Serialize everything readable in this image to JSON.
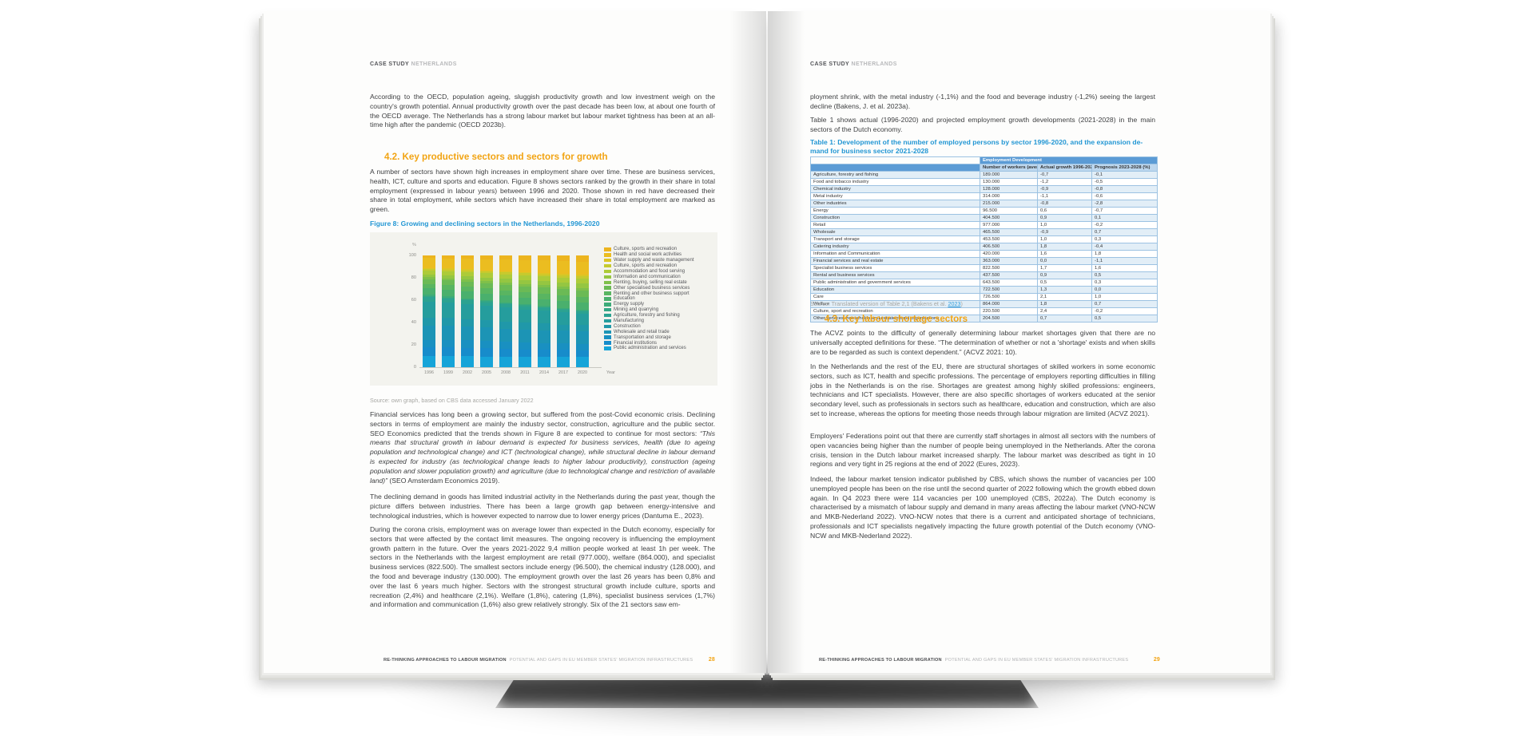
{
  "book": {
    "left_page": {
      "header": {
        "bold": "CASE STUDY",
        "light": "NETHERLANDS"
      },
      "p1": "According to the OECD, population ageing, sluggish productivity growth and low investment weigh on the country's growth potential. Annual productivity growth over the past decade has been low, at about one fourth of the OECD average. The Netherlands has a strong labour market but labour market tightness has been at an all-time high after the pandemic (OECD 2023b).",
      "section_heading": "4.2. Key productive sectors and sectors for growth",
      "p2": "A number of sectors have shown high increases in employment share over time. These are business services, health, ICT, culture and sports and education. Figure 8 shows sectors ranked by the growth in their share in total employment (expressed in labour years) between 1996 and 2020. Those shown in red have decreased their share in total employment, while sectors which have increased their share in total employment are marked as green.",
      "figure_caption": "Figure 8: Growing and declining sectors in the Netherlands, 1996-2020",
      "figure_source": "Source: own graph, based on CBS data accessed January 2022",
      "p3_lead": "Financial services has long been a growing sector, but suffered from the post-Covid economic crisis. Declining sectors in terms of employment are mainly the industry sector, construction, agriculture and the public sector. SEO Economics predicted that the trends shown in Figure 8 are expected to continue for most sectors: ",
      "p3_quote": "“This means that structural growth in labour demand is expected for business services, health (due to ageing population and technological change) and ICT (technological change), while structural decline in labour demand is expected for industry (as technological change leads to higher labour productivity), construction (ageing population and slower population growth) and agriculture (due to technological change and restriction of available land)”",
      "p3_tail": " (SEO Amsterdam Economics 2019).",
      "p4": "The declining demand in goods has limited industrial activity in the Netherlands during the past year, though the picture differs between industries. There has been a large growth gap between energy-intensive and technological industries, which is however expected to narrow due to lower energy prices (Dantuma E., 2023).",
      "p5": "During the corona crisis, employment was on average lower than expected in the Dutch economy, especially for sectors that were affected by the contact limit measures. The ongoing recovery is influencing the employment growth pattern in the future. Over the years 2021-2022 9,4 million people worked at least 1h per week. The sectors in the Netherlands with the largest employment are retail (977.000), welfare (864.000), and specialist business services (822.500). The smallest sectors include energy (96.500), the chemical industry (128.000), and the food and beverage industry (130.000). The employment growth over the last 26 years has been 0,8% and over the last 6 years much higher. Sectors with the strongest structural growth include culture, sports and recreation (2,4%) and healthcare (2,1%). Welfare (1,8%), catering (1,8%), specialist business services (1,7%) and information and communication (1,6%) also grew relatively strongly. Six of the 21 sectors saw em-",
      "footer": {
        "bold": "RE-THINKING APPROACHES TO LABOUR MIGRATION",
        "light": "POTENTIAL AND GAPS IN EU MEMBER STATES' MIGRATION INFRASTRUCTURES",
        "page": "28"
      }
    },
    "right_page": {
      "header": {
        "bold": "CASE STUDY",
        "light": "NETHERLANDS"
      },
      "p1": "ployment shrink, with the metal industry (-1,1%) and the food and beverage industry (-1,2%) seeing the largest decline (Bakens, J. et al. 2023a).",
      "p2": "Table 1 shows actual (1996-2020) and projected employment growth developments (2021-2028) in the main sectors of the Dutch economy.",
      "table_caption": "Table 1: Development of the number of employed persons by sector 1996-2020, and the expansion de-mand for business sector 2021-2028",
      "table": {
        "band_header": "Employment Development",
        "columns": [
          "Number of workers (average 2021-2022)",
          "Actual growth 1996-2022 (%)",
          "Prognosis 2023-2028 (%)"
        ],
        "rows": [
          {
            "sector": "Agriculture, forestry and fishing",
            "values": [
              "189.000",
              "-0,7",
              "-0,1"
            ]
          },
          {
            "sector": "Food and tobacco industry",
            "values": [
              "130.000",
              "-1,2",
              "-0,5"
            ]
          },
          {
            "sector": "Chemical industry",
            "values": [
              "128.000",
              "-0,9",
              "-0,8"
            ]
          },
          {
            "sector": "Metal industry",
            "values": [
              "314.000",
              "-1,1",
              "-0,6"
            ]
          },
          {
            "sector": "Other industries",
            "values": [
              "215.000",
              "-0,8",
              "-2,8"
            ]
          },
          {
            "sector": "Energy",
            "values": [
              "96.500",
              "0,6",
              "-0,7"
            ]
          },
          {
            "sector": "Construction",
            "values": [
              "404.500",
              "0,9",
              "0,1"
            ]
          },
          {
            "sector": "Retail",
            "values": [
              "977.000",
              "1,0",
              "-0,2"
            ]
          },
          {
            "sector": "Wholesale",
            "values": [
              "465.500",
              "-0,9",
              "0,7"
            ]
          },
          {
            "sector": "Transport and storage",
            "values": [
              "453.500",
              "1,0",
              "0,3"
            ]
          },
          {
            "sector": "Catering industry",
            "values": [
              "406.500",
              "1,8",
              "-0,4"
            ]
          },
          {
            "sector": "Information and Communication",
            "values": [
              "420.000",
              "1,6",
              "1,8"
            ]
          },
          {
            "sector": "Financial services and real estate",
            "values": [
              "363.000",
              "0,0",
              "-1,1"
            ]
          },
          {
            "sector": "Specialist business services",
            "values": [
              "822.500",
              "1,7",
              "1,6"
            ]
          },
          {
            "sector": "Rental and business services",
            "values": [
              "437.500",
              "0,9",
              "0,5"
            ]
          },
          {
            "sector": "Public administration and government services",
            "values": [
              "643.500",
              "0,5",
              "0,3"
            ]
          },
          {
            "sector": "Education",
            "values": [
              "722.500",
              "1,3",
              "0,0"
            ]
          },
          {
            "sector": "Care",
            "values": [
              "726.500",
              "2,1",
              "1,0"
            ]
          },
          {
            "sector": "Welfare",
            "values": [
              "864.000",
              "1,8",
              "0,7"
            ]
          },
          {
            "sector": "Culture, sport and recreation",
            "values": [
              "220.500",
              "2,4",
              "-0,2"
            ]
          },
          {
            "sector": "Other services, households and extraterritorial organisations",
            "values": [
              "204.500",
              "0,7",
              "0,5"
            ]
          }
        ],
        "source": {
          "prefix": "Source: Translated version of Table 2,1 (Bakens et al. ",
          "link": "2023",
          "suffix": ")"
        }
      },
      "section_heading": "4.3. Key labour shortage sectors",
      "p3": "The ACVZ points to the difficulty of generally determining labour market shortages given that there are no universally accepted definitions for these. “The determination of whether or not a 'shortage' exists and when skills are to be regarded as such is context dependent.” (ACVZ 2021: 10).",
      "p4": "In the Netherlands and the rest of the EU, there are structural shortages of skilled workers in some economic sectors, such as ICT, health and specific professions. The percentage of employers reporting difficulties in filling jobs in the Netherlands is on the rise. Shortages are greatest among highly skilled professions: engineers, technicians and ICT specialists. However, there are also specific shortages of workers educated at the senior secondary level, such as professionals in sectors such as healthcare, education and construction, which are also set to increase, whereas the options for meeting those needs through labour migration are limited (ACVZ 2021).",
      "p5": "Employers' Federations point out that there are currently staff shortages in almost all sectors with the numbers of open vacancies being higher than the number of people being unemployed in the Netherlands. After the corona crisis, tension in the Dutch labour market increased sharply. The labour market was described as tight in 10 regions and very tight in 25 regions at the end of 2022 (Eures, 2023).",
      "p6": "Indeed, the labour market tension indicator published by CBS, which shows the number of vacancies per 100 unemployed people has been on the rise until the second quarter of 2022 following which the growth ebbed down again. In Q4 2023 there were 114 vacancies per 100 unemployed (CBS, 2022a). The Dutch economy is characterised by a mismatch of labour supply and demand in many areas affecting the labour market (VNO-NCW and MKB-Nederland 2022). VNO-NCW notes that there is a current and anticipated shortage of technicians, professionals and ICT specialists negatively impacting the future growth potential of the Dutch economy (VNO-NCW and MKB-Nederland 2022).",
      "footer": {
        "bold": "RE-THINKING APPROACHES TO LABOUR MIGRATION",
        "light": "POTENTIAL AND GAPS IN EU MEMBER STATES' MIGRATION INFRASTRUCTURES",
        "page": "29"
      }
    }
  },
  "chart_data": {
    "type": "bar",
    "stacked": true,
    "title": "Figure 8: Growing and declining sectors in the Netherlands, 1996-2020",
    "xlabel": "Year",
    "ylabel": "%",
    "ylim": [
      0,
      100
    ],
    "yticks": [
      0,
      20,
      40,
      60,
      80,
      100
    ],
    "categories": [
      "1996",
      "1999",
      "2002",
      "2005",
      "2008",
      "2011",
      "2014",
      "2017",
      "2020"
    ],
    "legend_position": "right",
    "series": [
      {
        "name": "Culture, sports and recreation",
        "color": "#ECB41E",
        "values": [
          2.5,
          2.7,
          3.0,
          3.4,
          3.8,
          4.2,
          4.6,
          5.0,
          5.5
        ]
      },
      {
        "name": "Health and social work activities",
        "color": "#EBBD20",
        "values": [
          9.0,
          9.3,
          9.7,
          10.1,
          10.5,
          11.0,
          11.4,
          11.8,
          12.2
        ]
      },
      {
        "name": "Water supply and waste management",
        "color": "#DCC524",
        "values": [
          1.0,
          1.0,
          1.0,
          1.0,
          1.0,
          1.0,
          1.0,
          1.0,
          1.0
        ]
      },
      {
        "name": "Culture, sports and recreation",
        "color": "#C6CA2E",
        "values": [
          1.5,
          1.6,
          1.7,
          1.8,
          1.9,
          2.0,
          2.1,
          2.2,
          2.3
        ]
      },
      {
        "name": "Accommodation and food serving",
        "color": "#ADCB38",
        "values": [
          3.5,
          3.6,
          3.7,
          3.8,
          3.9,
          4.0,
          4.1,
          4.2,
          4.3
        ]
      },
      {
        "name": "Information and communication",
        "color": "#95C641",
        "values": [
          2.5,
          2.8,
          3.0,
          3.2,
          3.4,
          3.6,
          3.8,
          4.0,
          4.2
        ]
      },
      {
        "name": "Renting, buying, selling real estate",
        "color": "#7FC04A",
        "values": [
          2.0,
          2.0,
          2.1,
          2.1,
          2.2,
          2.2,
          2.3,
          2.3,
          2.4
        ]
      },
      {
        "name": "Other specialised business services",
        "color": "#6BBA55",
        "values": [
          4.0,
          4.2,
          4.5,
          4.7,
          5.0,
          5.2,
          5.4,
          5.6,
          5.8
        ]
      },
      {
        "name": "Renting and other business support",
        "color": "#59B561",
        "values": [
          4.0,
          4.2,
          4.4,
          4.5,
          4.6,
          4.7,
          4.8,
          4.9,
          5.0
        ]
      },
      {
        "name": "Education",
        "color": "#4AB06D",
        "values": [
          6.0,
          6.0,
          6.0,
          6.2,
          6.2,
          6.4,
          6.4,
          6.5,
          6.5
        ]
      },
      {
        "name": "Energy supply",
        "color": "#3DAB79",
        "values": [
          1.0,
          1.0,
          1.0,
          0.9,
          0.9,
          0.8,
          0.8,
          0.7,
          0.7
        ]
      },
      {
        "name": "Mining and quarrying",
        "color": "#33A685",
        "values": [
          1.0,
          1.0,
          0.9,
          0.9,
          0.8,
          0.8,
          0.7,
          0.7,
          0.6
        ]
      },
      {
        "name": "Agriculture, forestry and fishing",
        "color": "#2BA291",
        "values": [
          4.0,
          3.8,
          3.6,
          3.4,
          3.2,
          3.0,
          2.8,
          2.6,
          2.5
        ]
      },
      {
        "name": "Manufacturing",
        "color": "#259D9D",
        "values": [
          15.0,
          14.0,
          13.5,
          13.0,
          12.5,
          12.0,
          11.5,
          11.0,
          10.5
        ]
      },
      {
        "name": "Construction",
        "color": "#2098A9",
        "values": [
          7.0,
          7.0,
          7.0,
          6.5,
          6.5,
          6.0,
          6.0,
          5.5,
          5.5
        ]
      },
      {
        "name": "Wholesale and retail trade",
        "color": "#1C94B5",
        "values": [
          13.0,
          13.0,
          12.5,
          12.5,
          12.0,
          12.0,
          12.0,
          11.5,
          11.5
        ]
      },
      {
        "name": "Transportation and storage",
        "color": "#1990C1",
        "values": [
          7.0,
          7.0,
          7.0,
          6.5,
          6.5,
          6.0,
          6.0,
          6.0,
          6.0
        ]
      },
      {
        "name": "Financial institutions",
        "color": "#178CCB",
        "values": [
          8.0,
          8.0,
          7.5,
          7.5,
          7.0,
          7.0,
          6.5,
          6.5,
          6.0
        ]
      },
      {
        "name": "Public administration and services",
        "color": "#16A4D8",
        "values": [
          10.0,
          10.0,
          10.0,
          9.5,
          9.5,
          9.0,
          9.0,
          9.0,
          9.0
        ]
      }
    ]
  }
}
